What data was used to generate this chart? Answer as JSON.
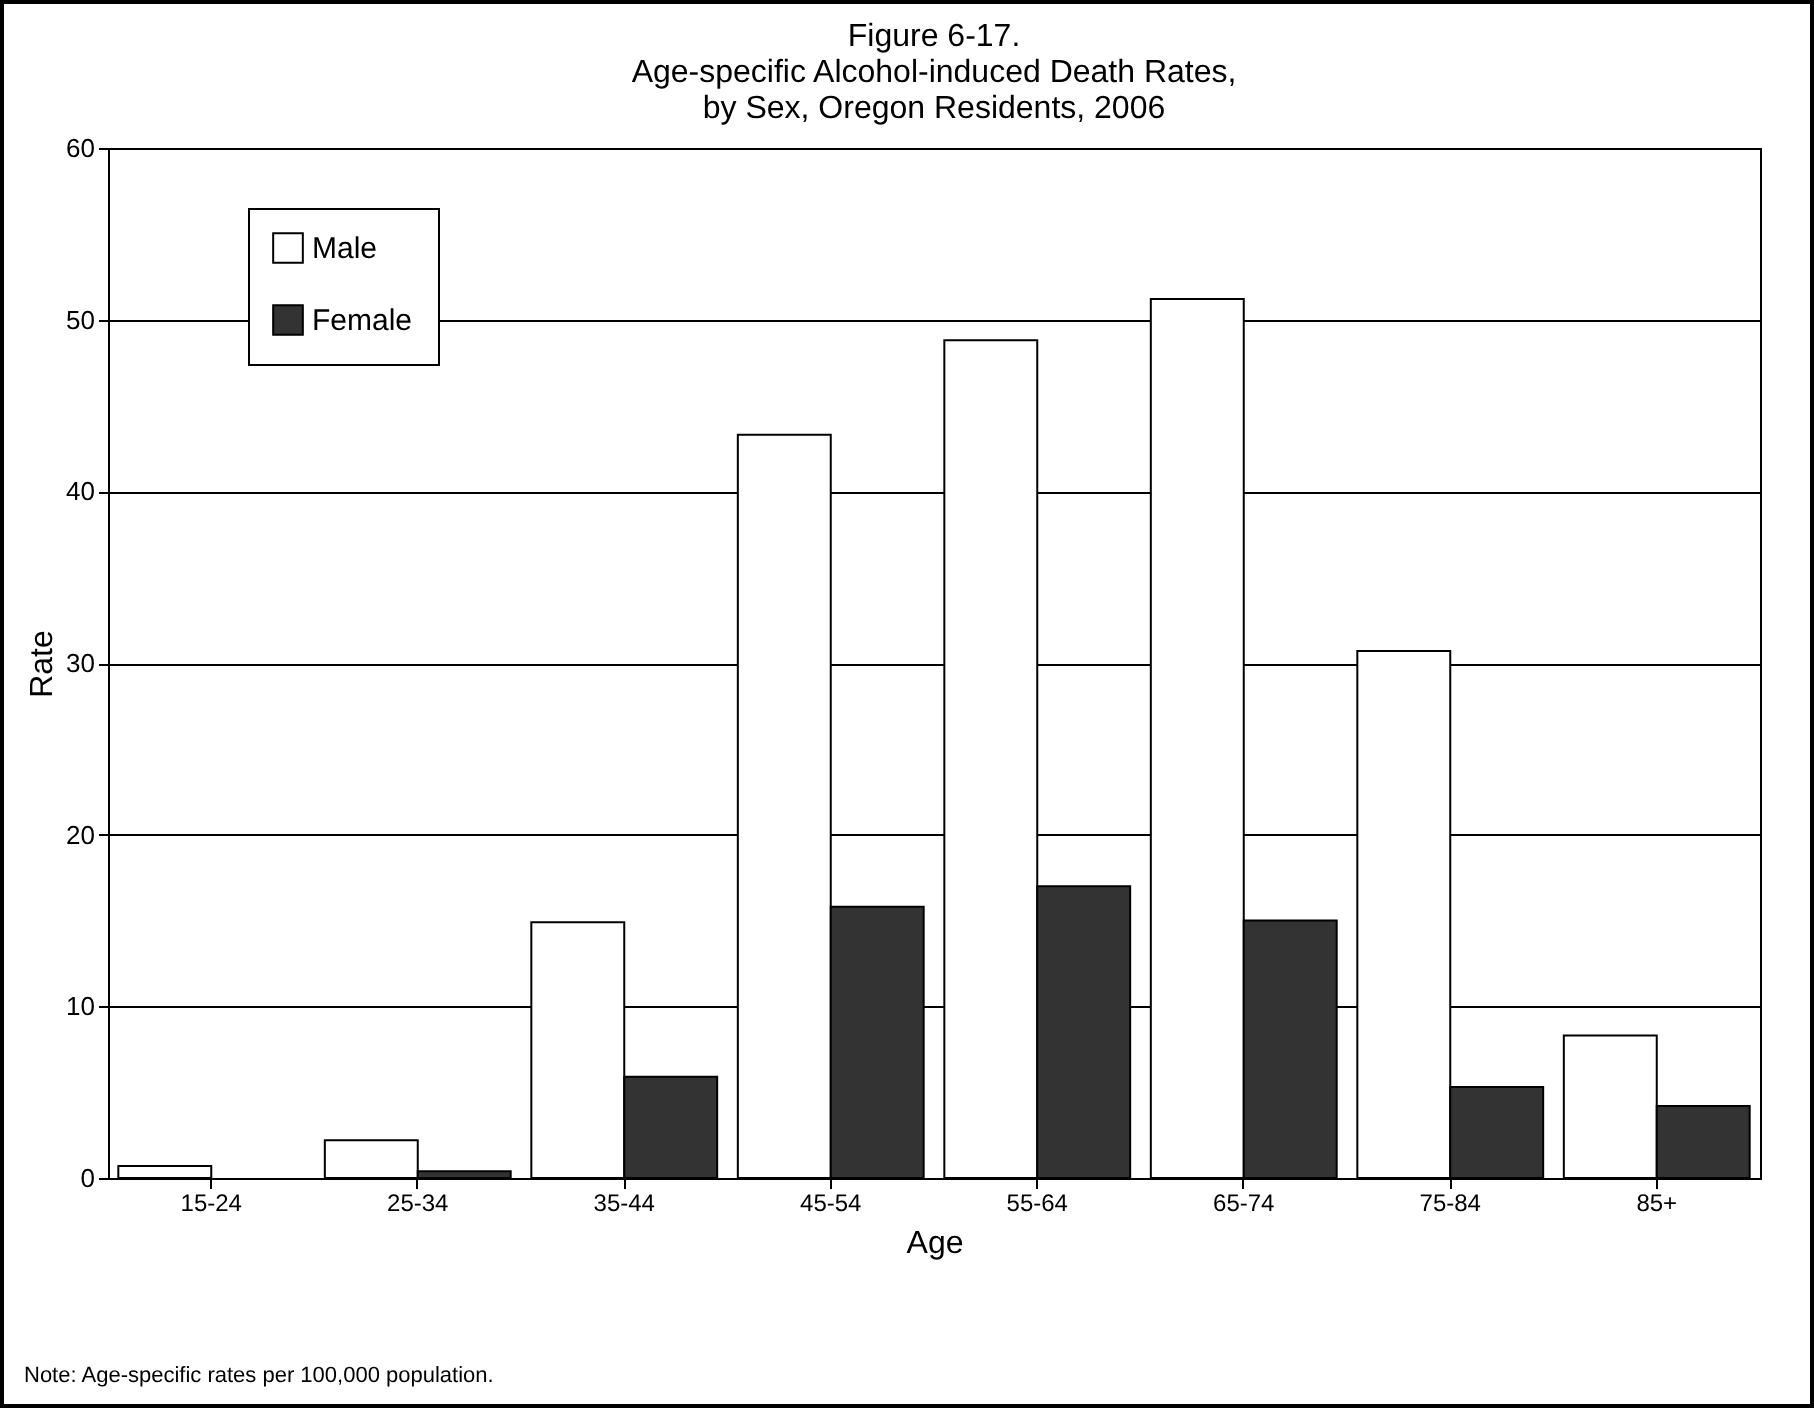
{
  "chart_data": {
    "type": "bar",
    "title": [
      "Figure 6-17.",
      "Age-specific Alcohol-induced Death Rates,",
      "by Sex, Oregon Residents, 2006"
    ],
    "xlabel": "Age",
    "ylabel": "Rate",
    "annotations": [
      "Note:  Age-specific rates per 100,000 population."
    ],
    "categories": [
      "15-24",
      "25-34",
      "35-44",
      "45-54",
      "55-64",
      "65-74",
      "75-84",
      "85+"
    ],
    "series": [
      {
        "name": "Male",
        "color": "#ffffff",
        "values": [
          0.7,
          2.2,
          14.9,
          43.3,
          48.8,
          51.2,
          30.7,
          8.3
        ]
      },
      {
        "name": "Female",
        "color": "#333333",
        "values": [
          null,
          0.4,
          5.9,
          15.8,
          17.0,
          15.0,
          5.3,
          4.2
        ]
      }
    ],
    "ylim": [
      0,
      60
    ],
    "yticks": [
      0,
      10,
      20,
      30,
      40,
      50,
      60
    ],
    "grid": "y",
    "legend": "top left"
  }
}
